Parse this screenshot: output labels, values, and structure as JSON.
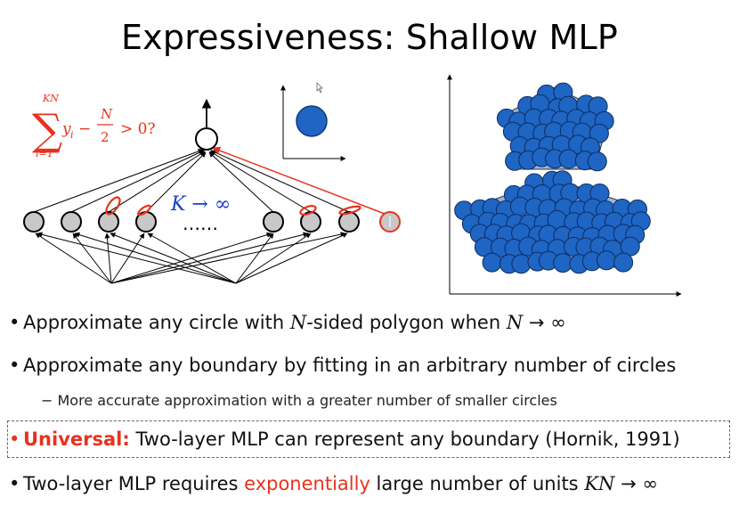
{
  "slide": {
    "title": "Expressiveness: Shallow MLP"
  },
  "figure": {
    "formula": {
      "sum_upper": "KN",
      "sum_lower": "i=1",
      "term": "y",
      "sub_i": "i",
      "minus": "−",
      "frac_num": "N",
      "frac_den": "2",
      "rhs": "> 0?"
    },
    "k_label": "K → ∞",
    "dots": "……",
    "colors": {
      "node_fill": "#c8c8c8",
      "red": "#e8321e",
      "blue_circle": "#1f65c3",
      "polygon_fill": "#9ab6dc",
      "k_label": "#1a3fc9"
    }
  },
  "bullets": {
    "b1": {
      "pre": "Approximate any circle with ",
      "n1": "N",
      "mid": "-sided polygon when ",
      "n2": "N",
      "post": " → ∞"
    },
    "b2": {
      "text": "Approximate any boundary by fitting in an arbitrary number of circles"
    },
    "sub2": {
      "dash": "−",
      "text": "More accurate approximation with a greater number of smaller circles"
    },
    "b3": {
      "label": "Universal:",
      "text": " Two-layer MLP can represent any boundary (Hornik, 1991)"
    },
    "b4": {
      "pre": "Two-layer MLP requires ",
      "highlight": "exponentially",
      "mid": " large number of units ",
      "kn": "KN",
      "post": " → ∞"
    }
  }
}
